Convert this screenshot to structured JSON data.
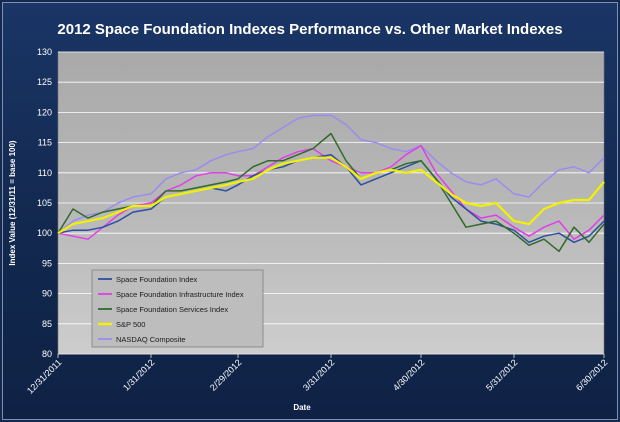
{
  "chart_data": {
    "type": "line",
    "title": "2012 Space Foundation Indexes Performance vs. Other Market Indexes",
    "xlabel": "Date",
    "ylabel": "Index Value (12/31/11 = base 100)",
    "ylim": [
      80,
      130
    ],
    "yticks": [
      80,
      85,
      90,
      95,
      100,
      105,
      110,
      115,
      120,
      125,
      130
    ],
    "x_range": [
      "12/31/2011",
      "6/30/2012"
    ],
    "xticks": [
      "12/31/2011",
      "1/31/2012",
      "2/29/2012",
      "3/31/2012",
      "4/30/2012",
      "5/31/2012",
      "6/30/2012"
    ],
    "grid": true,
    "legend_position": "bottom-left inside plot",
    "series": [
      {
        "name": "Space Foundation Index",
        "color": "#2c4f9e",
        "points": [
          [
            "12/31/2011",
            100
          ],
          [
            "1/5/2012",
            100.5
          ],
          [
            "1/10/2012",
            100.5
          ],
          [
            "1/15/2012",
            101
          ],
          [
            "1/20/2012",
            102
          ],
          [
            "1/25/2012",
            103.5
          ],
          [
            "1/31/2012",
            104
          ],
          [
            "2/5/2012",
            106
          ],
          [
            "2/10/2012",
            106.5
          ],
          [
            "2/15/2012",
            107
          ],
          [
            "2/20/2012",
            107.5
          ],
          [
            "2/25/2012",
            107
          ],
          [
            "2/29/2012",
            108
          ],
          [
            "3/5/2012",
            109.5
          ],
          [
            "3/10/2012",
            110.5
          ],
          [
            "3/15/2012",
            111
          ],
          [
            "3/20/2012",
            112
          ],
          [
            "3/25/2012",
            112.5
          ],
          [
            "3/31/2012",
            113
          ],
          [
            "4/5/2012",
            111
          ],
          [
            "4/10/2012",
            108
          ],
          [
            "4/15/2012",
            109
          ],
          [
            "4/20/2012",
            110
          ],
          [
            "4/25/2012",
            111
          ],
          [
            "4/30/2012",
            112
          ],
          [
            "5/5/2012",
            109
          ],
          [
            "5/10/2012",
            106
          ],
          [
            "5/15/2012",
            104
          ],
          [
            "5/20/2012",
            102
          ],
          [
            "5/25/2012",
            101.5
          ],
          [
            "5/31/2012",
            100.5
          ],
          [
            "6/5/2012",
            98.5
          ],
          [
            "6/10/2012",
            99.5
          ],
          [
            "6/15/2012",
            100
          ],
          [
            "6/20/2012",
            98.5
          ],
          [
            "6/25/2012",
            99.5
          ],
          [
            "6/30/2012",
            102
          ]
        ]
      },
      {
        "name": "Space Foundation Infrastructure Index",
        "color": "#e23ee8",
        "points": [
          [
            "12/31/2011",
            100
          ],
          [
            "1/5/2012",
            99.5
          ],
          [
            "1/10/2012",
            99
          ],
          [
            "1/15/2012",
            101
          ],
          [
            "1/20/2012",
            103
          ],
          [
            "1/25/2012",
            104.5
          ],
          [
            "1/31/2012",
            105
          ],
          [
            "2/5/2012",
            107
          ],
          [
            "2/10/2012",
            108
          ],
          [
            "2/15/2012",
            109.5
          ],
          [
            "2/20/2012",
            110
          ],
          [
            "2/25/2012",
            110
          ],
          [
            "2/29/2012",
            109.5
          ],
          [
            "3/5/2012",
            109.5
          ],
          [
            "3/10/2012",
            111
          ],
          [
            "3/15/2012",
            112.5
          ],
          [
            "3/20/2012",
            113.5
          ],
          [
            "3/25/2012",
            114
          ],
          [
            "3/31/2012",
            112
          ],
          [
            "4/5/2012",
            111
          ],
          [
            "4/10/2012",
            110
          ],
          [
            "4/15/2012",
            110
          ],
          [
            "4/20/2012",
            111
          ],
          [
            "4/25/2012",
            113
          ],
          [
            "4/30/2012",
            114.5
          ],
          [
            "5/5/2012",
            110
          ],
          [
            "5/10/2012",
            107
          ],
          [
            "5/15/2012",
            104
          ],
          [
            "5/20/2012",
            102.5
          ],
          [
            "5/25/2012",
            103
          ],
          [
            "5/31/2012",
            101
          ],
          [
            "6/5/2012",
            99.5
          ],
          [
            "6/10/2012",
            101
          ],
          [
            "6/15/2012",
            102
          ],
          [
            "6/20/2012",
            99
          ],
          [
            "6/25/2012",
            100.5
          ],
          [
            "6/30/2012",
            103
          ]
        ]
      },
      {
        "name": "Space Foundation Services Index",
        "color": "#2f6b2a",
        "points": [
          [
            "12/31/2011",
            100
          ],
          [
            "1/5/2012",
            104
          ],
          [
            "1/10/2012",
            102.5
          ],
          [
            "1/15/2012",
            103.5
          ],
          [
            "1/20/2012",
            104
          ],
          [
            "1/25/2012",
            104.5
          ],
          [
            "1/31/2012",
            104.5
          ],
          [
            "2/5/2012",
            107
          ],
          [
            "2/10/2012",
            107
          ],
          [
            "2/15/2012",
            107.5
          ],
          [
            "2/20/2012",
            108
          ],
          [
            "2/25/2012",
            108.5
          ],
          [
            "2/29/2012",
            109
          ],
          [
            "3/5/2012",
            111
          ],
          [
            "3/10/2012",
            112
          ],
          [
            "3/15/2012",
            112
          ],
          [
            "3/20/2012",
            113
          ],
          [
            "3/25/2012",
            114
          ],
          [
            "3/31/2012",
            116.5
          ],
          [
            "4/5/2012",
            112
          ],
          [
            "4/10/2012",
            109
          ],
          [
            "4/15/2012",
            110
          ],
          [
            "4/20/2012",
            110.5
          ],
          [
            "4/25/2012",
            111.5
          ],
          [
            "4/30/2012",
            112
          ],
          [
            "5/5/2012",
            109
          ],
          [
            "5/10/2012",
            105
          ],
          [
            "5/15/2012",
            101
          ],
          [
            "5/20/2012",
            101.5
          ],
          [
            "5/25/2012",
            102
          ],
          [
            "5/31/2012",
            100
          ],
          [
            "6/5/2012",
            98
          ],
          [
            "6/10/2012",
            99
          ],
          [
            "6/15/2012",
            97
          ],
          [
            "6/20/2012",
            101
          ],
          [
            "6/25/2012",
            98.5
          ],
          [
            "6/30/2012",
            101.5
          ]
        ]
      },
      {
        "name": "S&P 500",
        "color": "#f2f200",
        "points": [
          [
            "12/31/2011",
            100
          ],
          [
            "1/5/2012",
            101.5
          ],
          [
            "1/10/2012",
            102
          ],
          [
            "1/15/2012",
            102.5
          ],
          [
            "1/20/2012",
            103.5
          ],
          [
            "1/25/2012",
            104.5
          ],
          [
            "1/31/2012",
            104.5
          ],
          [
            "2/5/2012",
            106
          ],
          [
            "2/10/2012",
            106.5
          ],
          [
            "2/15/2012",
            107
          ],
          [
            "2/20/2012",
            107.5
          ],
          [
            "2/25/2012",
            108
          ],
          [
            "2/29/2012",
            108.5
          ],
          [
            "3/5/2012",
            109
          ],
          [
            "3/10/2012",
            110.5
          ],
          [
            "3/15/2012",
            111.5
          ],
          [
            "3/20/2012",
            112
          ],
          [
            "3/25/2012",
            112.5
          ],
          [
            "3/31/2012",
            112.5
          ],
          [
            "4/5/2012",
            111
          ],
          [
            "4/10/2012",
            109
          ],
          [
            "4/15/2012",
            110
          ],
          [
            "4/20/2012",
            110.5
          ],
          [
            "4/25/2012",
            110
          ],
          [
            "4/30/2012",
            110.5
          ],
          [
            "5/5/2012",
            108.5
          ],
          [
            "5/10/2012",
            106.5
          ],
          [
            "5/15/2012",
            105
          ],
          [
            "5/20/2012",
            104.5
          ],
          [
            "5/25/2012",
            105
          ],
          [
            "5/31/2012",
            102
          ],
          [
            "6/5/2012",
            101.5
          ],
          [
            "6/10/2012",
            104
          ],
          [
            "6/15/2012",
            105
          ],
          [
            "6/20/2012",
            105.5
          ],
          [
            "6/25/2012",
            105.5
          ],
          [
            "6/30/2012",
            108.5
          ]
        ]
      },
      {
        "name": "NASDAQ Composite",
        "color": "#9b8cf0",
        "points": [
          [
            "12/31/2011",
            100
          ],
          [
            "1/5/2012",
            102
          ],
          [
            "1/10/2012",
            103
          ],
          [
            "1/15/2012",
            103.5
          ],
          [
            "1/20/2012",
            105
          ],
          [
            "1/25/2012",
            106
          ],
          [
            "1/31/2012",
            106.5
          ],
          [
            "2/5/2012",
            109
          ],
          [
            "2/10/2012",
            110
          ],
          [
            "2/15/2012",
            110.5
          ],
          [
            "2/20/2012",
            112
          ],
          [
            "2/25/2012",
            113
          ],
          [
            "2/29/2012",
            113.5
          ],
          [
            "3/5/2012",
            114
          ],
          [
            "3/10/2012",
            116
          ],
          [
            "3/15/2012",
            117.5
          ],
          [
            "3/20/2012",
            119
          ],
          [
            "3/25/2012",
            119.5
          ],
          [
            "3/31/2012",
            119.5
          ],
          [
            "4/5/2012",
            118
          ],
          [
            "4/10/2012",
            115.5
          ],
          [
            "4/15/2012",
            115
          ],
          [
            "4/20/2012",
            114
          ],
          [
            "4/25/2012",
            113.5
          ],
          [
            "4/30/2012",
            114.5
          ],
          [
            "5/5/2012",
            112
          ],
          [
            "5/10/2012",
            110
          ],
          [
            "5/15/2012",
            108.5
          ],
          [
            "5/20/2012",
            108
          ],
          [
            "5/25/2012",
            109
          ],
          [
            "5/31/2012",
            106.5
          ],
          [
            "6/5/2012",
            106
          ],
          [
            "6/10/2012",
            108.5
          ],
          [
            "6/15/2012",
            110.5
          ],
          [
            "6/20/2012",
            111
          ],
          [
            "6/25/2012",
            110
          ],
          [
            "6/30/2012",
            112.5
          ]
        ]
      }
    ]
  }
}
